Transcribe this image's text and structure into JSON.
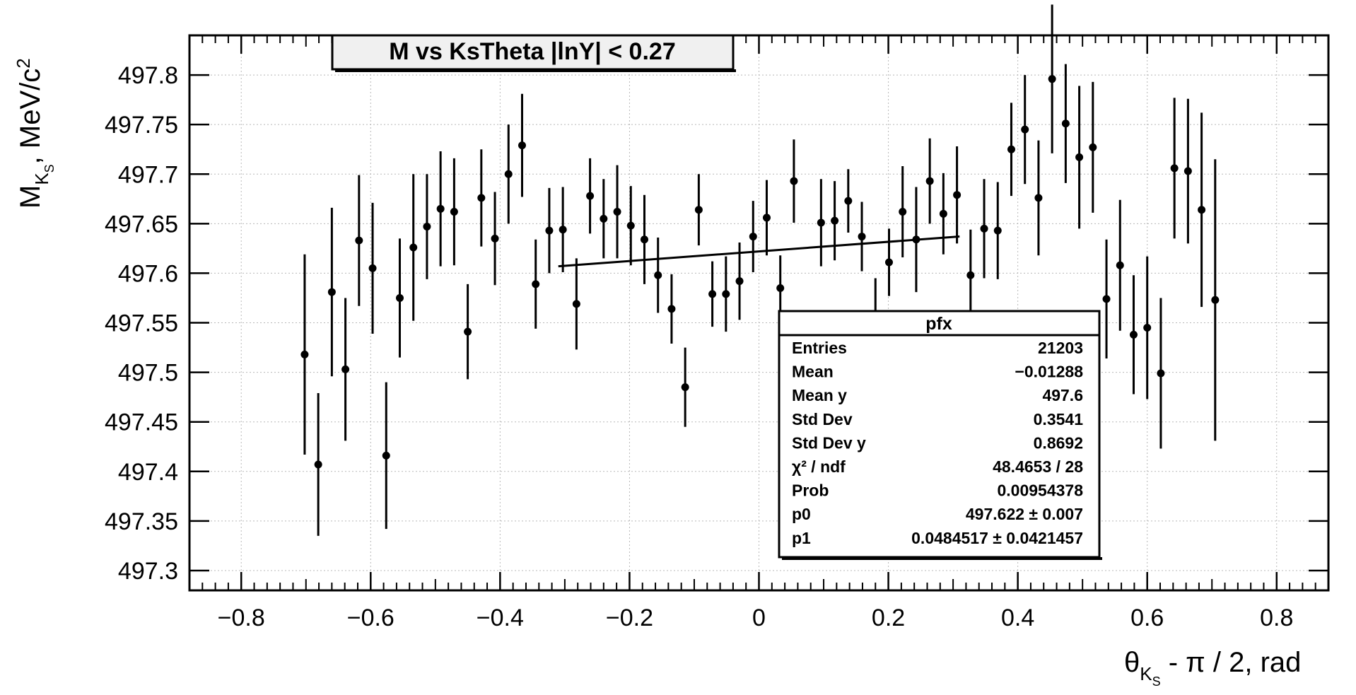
{
  "chart_data": {
    "type": "scatter",
    "title": "M vs KsTheta |lnY| < 0.27",
    "xlabel": {
      "main": "θ",
      "sub": "K",
      "subsub": "S",
      "rest": " - π / 2, rad"
    },
    "ylabel": {
      "main": "M",
      "sub": "K",
      "subsub": "S",
      "rest": ", MeV/c",
      "sup": "2"
    },
    "xlim": [
      -0.88,
      0.88
    ],
    "ylim": [
      497.28,
      497.84
    ],
    "x_ticks": [
      "−0.8",
      "−0.6",
      "−0.4",
      "−0.2",
      "0",
      "0.2",
      "0.4",
      "0.6",
      "0.8"
    ],
    "x_tick_values": [
      -0.8,
      -0.6,
      -0.4,
      -0.2,
      0,
      0.2,
      0.4,
      0.6,
      0.8
    ],
    "y_ticks": [
      "497.3",
      "497.35",
      "497.4",
      "497.45",
      "497.5",
      "497.55",
      "497.6",
      "497.65",
      "497.7",
      "497.75",
      "497.8"
    ],
    "y_tick_values": [
      497.3,
      497.35,
      497.4,
      497.45,
      497.5,
      497.55,
      497.6,
      497.65,
      497.7,
      497.75,
      497.8
    ],
    "grid": true,
    "points": [
      {
        "x": -0.702,
        "y": 497.518,
        "err": 0.101
      },
      {
        "x": -0.681,
        "y": 497.407,
        "err": 0.072
      },
      {
        "x": -0.66,
        "y": 497.581,
        "err": 0.085
      },
      {
        "x": -0.639,
        "y": 497.503,
        "err": 0.072
      },
      {
        "x": -0.618,
        "y": 497.633,
        "err": 0.066
      },
      {
        "x": -0.597,
        "y": 497.605,
        "err": 0.066
      },
      {
        "x": -0.576,
        "y": 497.416,
        "err": 0.074
      },
      {
        "x": -0.555,
        "y": 497.575,
        "err": 0.06
      },
      {
        "x": -0.534,
        "y": 497.626,
        "err": 0.074
      },
      {
        "x": -0.513,
        "y": 497.647,
        "err": 0.053
      },
      {
        "x": -0.492,
        "y": 497.665,
        "err": 0.058
      },
      {
        "x": -0.471,
        "y": 497.662,
        "err": 0.054
      },
      {
        "x": -0.45,
        "y": 497.541,
        "err": 0.048
      },
      {
        "x": -0.429,
        "y": 497.676,
        "err": 0.049
      },
      {
        "x": -0.408,
        "y": 497.635,
        "err": 0.047
      },
      {
        "x": -0.387,
        "y": 497.7,
        "err": 0.05
      },
      {
        "x": -0.366,
        "y": 497.729,
        "err": 0.052
      },
      {
        "x": -0.345,
        "y": 497.589,
        "err": 0.045
      },
      {
        "x": -0.324,
        "y": 497.643,
        "err": 0.043
      },
      {
        "x": -0.303,
        "y": 497.644,
        "err": 0.043
      },
      {
        "x": -0.282,
        "y": 497.569,
        "err": 0.046
      },
      {
        "x": -0.261,
        "y": 497.678,
        "err": 0.038
      },
      {
        "x": -0.24,
        "y": 497.655,
        "err": 0.04
      },
      {
        "x": -0.219,
        "y": 497.662,
        "err": 0.047
      },
      {
        "x": -0.198,
        "y": 497.648,
        "err": 0.04
      },
      {
        "x": -0.177,
        "y": 497.634,
        "err": 0.045
      },
      {
        "x": -0.156,
        "y": 497.598,
        "err": 0.038
      },
      {
        "x": -0.135,
        "y": 497.564,
        "err": 0.035
      },
      {
        "x": -0.114,
        "y": 497.485,
        "err": 0.04
      },
      {
        "x": -0.093,
        "y": 497.664,
        "err": 0.036
      },
      {
        "x": -0.072,
        "y": 497.579,
        "err": 0.033
      },
      {
        "x": -0.051,
        "y": 497.579,
        "err": 0.038
      },
      {
        "x": -0.03,
        "y": 497.592,
        "err": 0.039
      },
      {
        "x": -0.009,
        "y": 497.637,
        "err": 0.036
      },
      {
        "x": 0.012,
        "y": 497.656,
        "err": 0.038
      },
      {
        "x": 0.033,
        "y": 497.585,
        "err": 0.033
      },
      {
        "x": 0.054,
        "y": 497.693,
        "err": 0.042
      },
      {
        "x": 0.096,
        "y": 497.651,
        "err": 0.044
      },
      {
        "x": 0.117,
        "y": 497.653,
        "err": 0.04
      },
      {
        "x": 0.138,
        "y": 497.673,
        "err": 0.032
      },
      {
        "x": 0.159,
        "y": 497.637,
        "err": 0.035
      },
      {
        "x": 0.18,
        "y": 497.559,
        "err": 0.036
      },
      {
        "x": 0.201,
        "y": 497.611,
        "err": 0.034
      },
      {
        "x": 0.222,
        "y": 497.662,
        "err": 0.046
      },
      {
        "x": 0.243,
        "y": 497.634,
        "err": 0.053
      },
      {
        "x": 0.264,
        "y": 497.693,
        "err": 0.043
      },
      {
        "x": 0.285,
        "y": 497.66,
        "err": 0.041
      },
      {
        "x": 0.306,
        "y": 497.679,
        "err": 0.049
      },
      {
        "x": 0.327,
        "y": 497.598,
        "err": 0.046
      },
      {
        "x": 0.348,
        "y": 497.645,
        "err": 0.05
      },
      {
        "x": 0.369,
        "y": 497.643,
        "err": 0.049
      },
      {
        "x": 0.39,
        "y": 497.725,
        "err": 0.047
      },
      {
        "x": 0.411,
        "y": 497.745,
        "err": 0.055
      },
      {
        "x": 0.432,
        "y": 497.676,
        "err": 0.058
      },
      {
        "x": 0.453,
        "y": 497.796,
        "err": 0.075
      },
      {
        "x": 0.474,
        "y": 497.751,
        "err": 0.06
      },
      {
        "x": 0.495,
        "y": 497.717,
        "err": 0.072
      },
      {
        "x": 0.516,
        "y": 497.727,
        "err": 0.066
      },
      {
        "x": 0.537,
        "y": 497.574,
        "err": 0.06
      },
      {
        "x": 0.558,
        "y": 497.608,
        "err": 0.066
      },
      {
        "x": 0.579,
        "y": 497.538,
        "err": 0.06
      },
      {
        "x": 0.6,
        "y": 497.545,
        "err": 0.072
      },
      {
        "x": 0.621,
        "y": 497.499,
        "err": 0.076
      },
      {
        "x": 0.642,
        "y": 497.706,
        "err": 0.071
      },
      {
        "x": 0.663,
        "y": 497.703,
        "err": 0.073
      },
      {
        "x": 0.684,
        "y": 497.664,
        "err": 0.098
      },
      {
        "x": 0.705,
        "y": 497.573,
        "err": 0.142
      }
    ],
    "fit": {
      "x": [
        -0.31,
        0.31
      ],
      "p0": 497.622,
      "p1": 0.0484517
    },
    "stats": {
      "title": "pfx",
      "rows": [
        {
          "label": "Entries",
          "value": "21203"
        },
        {
          "label": "Mean",
          "value": "−0.01288"
        },
        {
          "label": "Mean y",
          "value": "497.6"
        },
        {
          "label": "Std Dev",
          "value": "0.3541"
        },
        {
          "label": "Std Dev y",
          "value": "0.8692"
        },
        {
          "label": "χ² / ndf",
          "value": "48.4653 / 28"
        },
        {
          "label": "Prob",
          "value": "0.00954378"
        },
        {
          "label": "p0",
          "value": "497.622 ± 0.007"
        },
        {
          "label": "p1",
          "value": "0.0484517 ± 0.0421457"
        }
      ]
    }
  }
}
